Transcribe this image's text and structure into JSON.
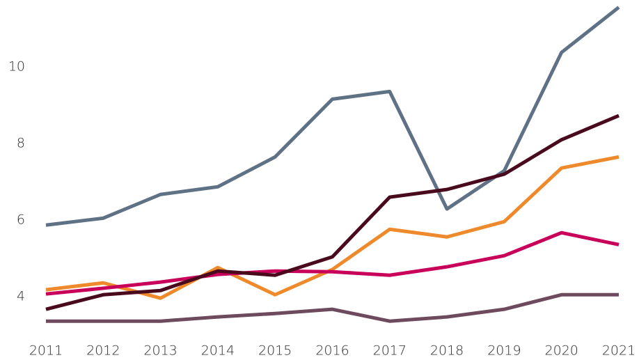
{
  "chart_data": {
    "type": "line",
    "categories": [
      "2011",
      "2012",
      "2013",
      "2014",
      "2015",
      "2016",
      "2017",
      "2018",
      "2019",
      "2020",
      "2021"
    ],
    "ylim": [
      3.2,
      11.75
    ],
    "yticks": [
      4,
      6,
      8,
      10
    ],
    "grid": false,
    "series": [
      {
        "color": "#5e7185",
        "values": [
          5.87,
          6.05,
          6.67,
          6.87,
          7.65,
          9.16,
          9.36,
          6.29,
          7.29,
          10.38,
          11.56
        ]
      },
      {
        "color": "#ee8a2b",
        "values": [
          4.18,
          4.36,
          3.96,
          4.76,
          4.05,
          4.71,
          5.76,
          5.56,
          5.96,
          7.36,
          7.65
        ]
      },
      {
        "color": "#c8005a",
        "values": [
          4.07,
          4.22,
          4.38,
          4.58,
          4.67,
          4.65,
          4.56,
          4.78,
          5.07,
          5.67,
          5.36
        ]
      },
      {
        "color": "#6e4a5e",
        "values": [
          3.36,
          3.36,
          3.36,
          3.47,
          3.56,
          3.67,
          3.36,
          3.47,
          3.67,
          4.05,
          4.05
        ]
      },
      {
        "color": "#4a0a1e",
        "values": [
          3.67,
          4.05,
          4.16,
          4.67,
          4.56,
          5.04,
          6.6,
          6.8,
          7.2,
          8.1,
          8.73
        ]
      }
    ]
  }
}
